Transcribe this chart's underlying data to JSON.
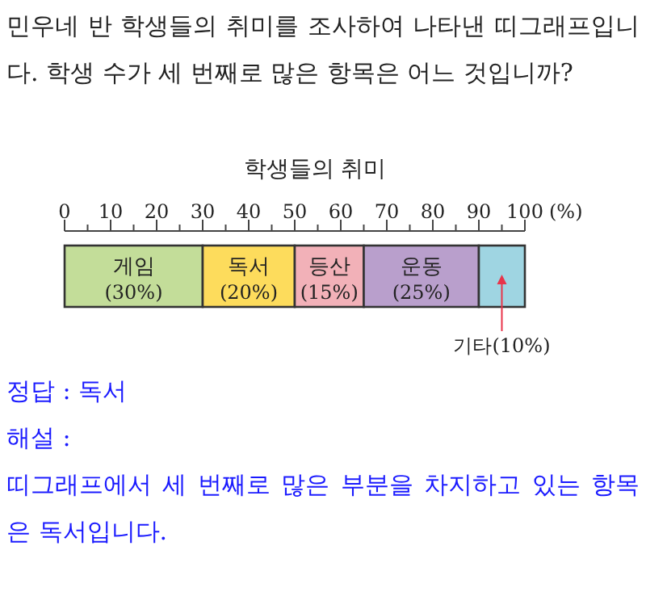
{
  "chart_data": {
    "type": "bar",
    "stacked": true,
    "orientation": "horizontal",
    "title": "학생들의 취미",
    "xlabel": "(%)",
    "tick_labels": "x",
    "categories": [
      null
    ],
    "xlim": [
      0,
      100
    ],
    "xticks": [
      0,
      {
        "value": 5,
        "label": null
      },
      10,
      {
        "value": 15,
        "label": null
      },
      20,
      {
        "value": 25,
        "label": null
      },
      30,
      {
        "value": 35,
        "label": null
      },
      40,
      {
        "value": 45,
        "label": null
      },
      50,
      {
        "value": 55,
        "label": null
      },
      60,
      {
        "value": 65,
        "label": null
      },
      70,
      {
        "value": 75,
        "label": null
      },
      80,
      {
        "value": 85,
        "label": null
      },
      90,
      {
        "value": 95,
        "label": null
      },
      100
    ],
    "series": [
      {
        "name": "게임",
        "color": "#c3dd99",
        "values": [
          30
        ],
        "value_labels": [
          "(30%)"
        ]
      },
      {
        "name": "독서",
        "color": "#fddc5c",
        "values": [
          20
        ],
        "value_labels": [
          "(20%)"
        ]
      },
      {
        "name": "등산",
        "color": "#f2b1b8",
        "values": [
          15
        ],
        "value_labels": [
          "(15%)"
        ]
      },
      {
        "name": "운동",
        "color": "#b99fcc",
        "values": [
          25
        ],
        "value_labels": [
          "(25%)"
        ]
      },
      {
        "name": "기타",
        "color": "#9fd5e2",
        "values": [
          10
        ],
        "value_labels": [
          "(10%)"
        ]
      }
    ],
    "annotations": [
      "민우네 반 학생들의 취미를 조사하여 나타낸 띠그래프입니다. 학생 수가 세 번째로 많은 항목은 어느 것입니까?",
      "정답 : 독서",
      "해설 :",
      "띠그래프에서 세 번째로 많은 부분을 차지하고 있는 항목은 독서입니다."
    ]
  }
}
